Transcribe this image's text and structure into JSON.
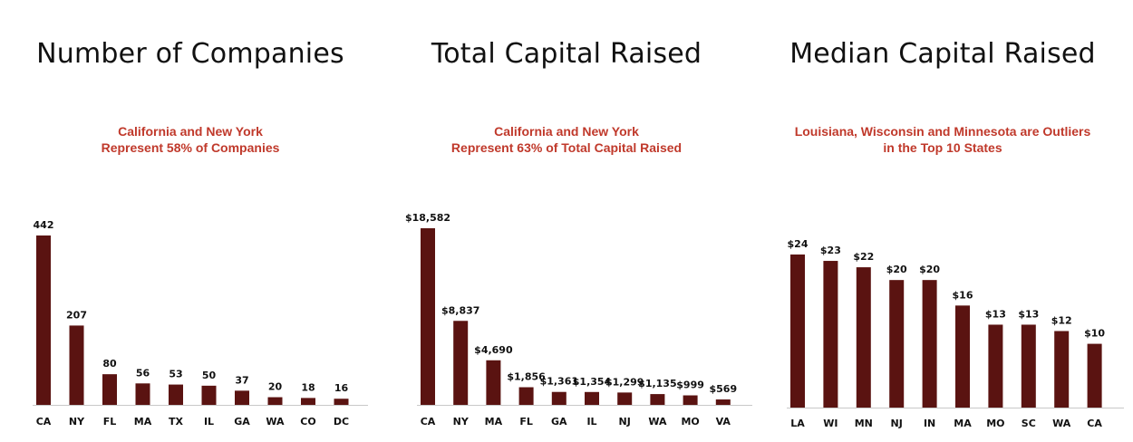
{
  "colors": {
    "bar": "#5a1311",
    "subtitle": "#c0392b",
    "axis": "#c8c8c8"
  },
  "chart_data": [
    {
      "type": "bar",
      "title": "Number of Companies",
      "subtitle": [
        "California and New York",
        "Represent 58% of Companies"
      ],
      "categories": [
        "CA",
        "NY",
        "FL",
        "MA",
        "TX",
        "IL",
        "GA",
        "WA",
        "CO",
        "DC"
      ],
      "values": [
        442,
        207,
        80,
        56,
        53,
        50,
        37,
        20,
        18,
        16
      ],
      "labels": [
        "442",
        "207",
        "80",
        "56",
        "53",
        "50",
        "37",
        "20",
        "18",
        "16"
      ],
      "ylim": [
        0,
        442
      ]
    },
    {
      "type": "bar",
      "title": "Total Capital Raised",
      "subtitle": [
        "California and New York",
        "Represent 63% of Total Capital Raised"
      ],
      "categories": [
        "CA",
        "NY",
        "MA",
        "FL",
        "GA",
        "IL",
        "NJ",
        "WA",
        "MO",
        "VA"
      ],
      "values": [
        18582,
        8837,
        4690,
        1856,
        1361,
        1354,
        1299,
        1135,
        999,
        569
      ],
      "labels": [
        "$18,582",
        "$8,837",
        "$4,690",
        "$1,856",
        "$1,361",
        "$1,354",
        "$1,299",
        "$1,135",
        "$999",
        "$569"
      ],
      "ylim": [
        0,
        18582
      ]
    },
    {
      "type": "bar",
      "title": "Median Capital Raised",
      "subtitle": [
        "Louisiana, Wisconsin and Minnesota are Outliers",
        "in the Top 10 States"
      ],
      "categories": [
        "LA",
        "WI",
        "MN",
        "NJ",
        "IN",
        "MA",
        "MO",
        "SC",
        "WA",
        "CA"
      ],
      "values": [
        24,
        23,
        22,
        20,
        20,
        16,
        13,
        13,
        12,
        10
      ],
      "labels": [
        "$24",
        "$23",
        "$22",
        "$20",
        "$20",
        "$16",
        "$13",
        "$13",
        "$12",
        "$10"
      ],
      "ylim": [
        0,
        24
      ]
    }
  ]
}
